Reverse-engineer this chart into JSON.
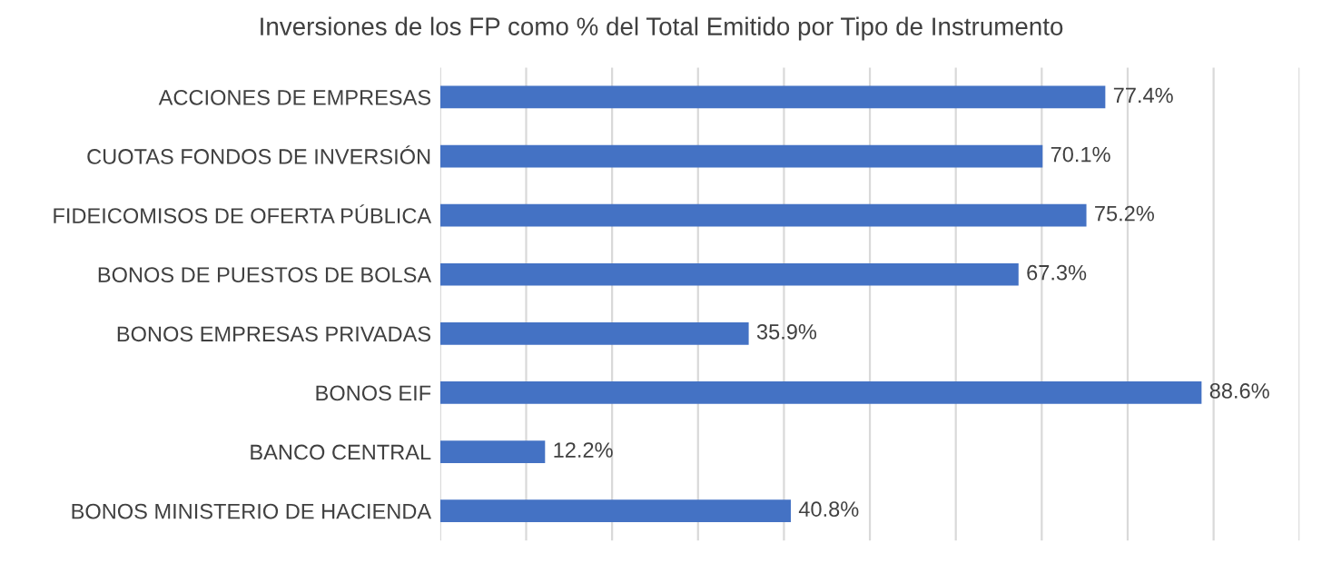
{
  "chart_data": {
    "type": "bar",
    "orientation": "horizontal",
    "title": "Inversiones de los FP como % del Total Emitido por Tipo de Instrumento",
    "categories": [
      "ACCIONES DE EMPRESAS",
      "CUOTAS FONDOS DE INVERSIÓN",
      "FIDEICOMISOS DE OFERTA PÚBLICA",
      "BONOS DE PUESTOS DE BOLSA",
      "BONOS EMPRESAS PRIVADAS",
      "BONOS EIF",
      "BANCO CENTRAL",
      "BONOS MINISTERIO DE HACIENDA"
    ],
    "values": [
      77.4,
      70.1,
      75.2,
      67.3,
      35.9,
      88.6,
      12.2,
      40.8
    ],
    "value_labels": [
      "77.4%",
      "70.1%",
      "75.2%",
      "67.3%",
      "35.9%",
      "88.6%",
      "12.2%",
      "40.8%"
    ],
    "color": "#4472c4",
    "xlim": [
      0,
      100
    ],
    "xticks": [
      {
        "value": 0,
        "label": null
      },
      {
        "value": 10,
        "label": null
      },
      {
        "value": 20,
        "label": null
      },
      {
        "value": 30,
        "label": null
      },
      {
        "value": 40,
        "label": null
      },
      {
        "value": 50,
        "label": null
      },
      {
        "value": 60,
        "label": null
      },
      {
        "value": 70,
        "label": null
      },
      {
        "value": 80,
        "label": null
      },
      {
        "value": 90,
        "label": null
      },
      {
        "value": 100,
        "label": null
      }
    ],
    "tick_labels": "y",
    "grid": "x",
    "legend": false
  }
}
